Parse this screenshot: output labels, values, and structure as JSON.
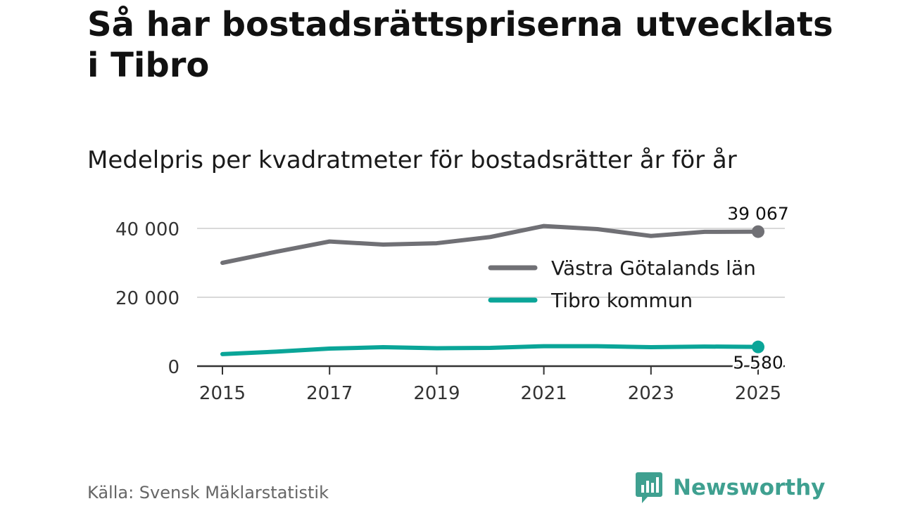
{
  "title": "Så har bostadsrättspriserna utvecklats i Tibro",
  "subtitle": "Medelpris per kvadratmeter för bostadsrätter år för år",
  "source": "Källa: Svensk Mäklarstatistik",
  "brand": {
    "name": "Newsworthy",
    "logo_icon": "newsworthy-logo-icon"
  },
  "colors": {
    "region": "#707075",
    "municipality": "#0aa598",
    "brand": "#3fa090",
    "grid": "#d9d9d9"
  },
  "chart_data": {
    "type": "line",
    "title": "Så har bostadsrättspriserna utvecklats i Tibro",
    "subtitle": "Medelpris per kvadratmeter för bostadsrätter år för år",
    "xlabel": "",
    "ylabel": "",
    "x": [
      2015,
      2016,
      2017,
      2018,
      2019,
      2020,
      2021,
      2022,
      2023,
      2024,
      2025
    ],
    "xlim": [
      2015,
      2025
    ],
    "ylim": [
      0,
      40000
    ],
    "x_ticks": [
      2015,
      2017,
      2019,
      2021,
      2023,
      2025
    ],
    "x_tick_labels": [
      "2015",
      "2017",
      "2019",
      "2021",
      "2023",
      "2025"
    ],
    "y_ticks": [
      0,
      20000,
      40000
    ],
    "y_tick_labels": [
      "0",
      "20 000",
      "40 000"
    ],
    "grid": true,
    "legend": "right",
    "series": [
      {
        "name": "Västra Götalands län",
        "color": "#707075",
        "values": [
          30000,
          33200,
          36200,
          35300,
          35700,
          37500,
          40700,
          39800,
          37800,
          39000,
          39067
        ],
        "end_label": "39 067"
      },
      {
        "name": "Tibro kommun",
        "color": "#0aa598",
        "values": [
          3500,
          4200,
          5100,
          5500,
          5200,
          5300,
          5800,
          5800,
          5500,
          5700,
          5580
        ],
        "end_label": "5 580"
      }
    ]
  }
}
